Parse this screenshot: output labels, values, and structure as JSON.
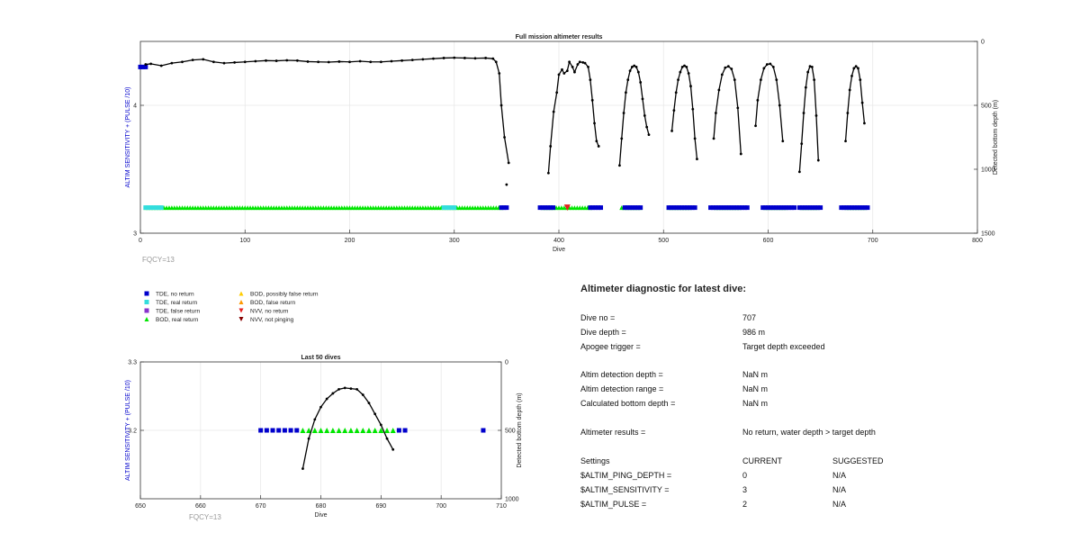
{
  "chart_data": [
    {
      "type": "scatter",
      "title": "Full mission altimeter results",
      "xlabel": "Dive",
      "ylabel_left": "ALTIM SENSITIVITY + (PULSE /10)",
      "ylabel_right": "Detected bottom depth (m)",
      "xlim": [
        0,
        800
      ],
      "ylim_left": [
        3,
        4.5
      ],
      "ylim_right": [
        0,
        1500
      ],
      "right_axis_reversed": true,
      "xticks": [
        0,
        100,
        200,
        300,
        400,
        500,
        600,
        700,
        800
      ],
      "yticks_left": [
        3,
        4
      ],
      "yticks_right": [
        0,
        500,
        1000,
        1500
      ],
      "grid": true,
      "annotation": "FQCY=13",
      "settings_series": [
        {
          "name": "TDE, no return",
          "x_segments": [
            [
              0,
              5
            ]
          ],
          "y": 4.3,
          "marker": "square",
          "color": "#0000cc"
        },
        {
          "name": "TDE, no return",
          "x_segments": [
            [
              345,
              352
            ],
            [
              382,
              395
            ],
            [
              430,
              440
            ],
            [
              463,
              480
            ],
            [
              505,
              530
            ],
            [
              545,
              580
            ],
            [
              595,
              625
            ],
            [
              630,
              650
            ],
            [
              670,
              695
            ]
          ],
          "y": 3.2,
          "marker": "square",
          "color": "#0000cc"
        },
        {
          "name": "BOD, real return",
          "x_segments": [
            [
              5,
              345
            ],
            [
              385,
              432
            ],
            [
              460,
              478
            ],
            [
              505,
              525
            ],
            [
              550,
              573
            ],
            [
              597,
              618
            ],
            [
              632,
              648
            ],
            [
              675,
              693
            ]
          ],
          "y": 3.2,
          "marker": "triangle",
          "color": "#00e600"
        },
        {
          "name": "TDE, real return",
          "x_segments": [
            [
              5,
              20
            ],
            [
              290,
              300
            ]
          ],
          "y": 3.2,
          "marker": "square",
          "color": "#33dddd"
        },
        {
          "name": "NVV, no return",
          "x": [
            408
          ],
          "y": 3.2,
          "marker": "triangle-down",
          "color": "#e62020"
        }
      ],
      "bottom_depth_profile": [
        {
          "x": [
            5,
            10,
            20,
            30,
            40,
            50,
            60,
            70,
            80,
            90,
            100,
            110,
            120,
            130,
            140,
            150,
            160,
            170,
            180,
            190,
            200,
            210,
            220,
            230,
            240,
            250,
            260,
            270,
            280,
            290,
            300,
            310,
            320,
            330,
            337,
            340,
            343,
            345,
            348,
            352
          ],
          "y": [
            180,
            175,
            190,
            170,
            160,
            145,
            140,
            160,
            170,
            165,
            160,
            155,
            150,
            152,
            148,
            150,
            158,
            160,
            162,
            158,
            160,
            155,
            160,
            160,
            155,
            150,
            145,
            140,
            135,
            130,
            128,
            130,
            132,
            130,
            135,
            160,
            250,
            500,
            750,
            950
          ]
        },
        {
          "x": [
            350
          ],
          "y": [
            1120
          ]
        },
        {
          "x": [
            390,
            392,
            395,
            398,
            400,
            403,
            405,
            408,
            410,
            413,
            415,
            418,
            420,
            423,
            425,
            428,
            430,
            432,
            434,
            436,
            438
          ],
          "y": [
            1030,
            820,
            550,
            400,
            260,
            220,
            250,
            230,
            160,
            200,
            240,
            180,
            160,
            165,
            170,
            200,
            300,
            460,
            640,
            780,
            820
          ]
        },
        {
          "x": [
            458,
            460,
            462,
            464,
            466,
            468,
            470,
            472,
            474,
            476,
            478,
            480,
            482,
            484,
            486
          ],
          "y": [
            970,
            760,
            560,
            400,
            300,
            230,
            200,
            190,
            200,
            240,
            320,
            450,
            580,
            670,
            730
          ]
        },
        {
          "x": [
            508,
            510,
            512,
            514,
            516,
            518,
            520,
            522,
            524,
            526,
            528,
            530,
            532
          ],
          "y": [
            700,
            540,
            400,
            300,
            240,
            200,
            190,
            200,
            250,
            350,
            530,
            760,
            920
          ]
        },
        {
          "x": [
            548,
            550,
            553,
            556,
            559,
            562,
            565,
            568,
            571,
            574
          ],
          "y": [
            760,
            560,
            380,
            260,
            205,
            195,
            215,
            300,
            520,
            880
          ]
        },
        {
          "x": [
            588,
            590,
            593,
            596,
            599,
            602,
            605,
            608,
            611,
            614
          ],
          "y": [
            660,
            460,
            300,
            210,
            180,
            175,
            200,
            300,
            500,
            780
          ]
        },
        {
          "x": [
            630,
            632,
            634,
            636,
            638,
            640,
            642,
            644,
            646,
            648
          ],
          "y": [
            1020,
            800,
            560,
            360,
            240,
            195,
            200,
            300,
            580,
            930
          ]
        },
        {
          "x": [
            674,
            676,
            678,
            680,
            682,
            684,
            686,
            688,
            690,
            692
          ],
          "y": [
            780,
            560,
            380,
            270,
            210,
            195,
            210,
            300,
            480,
            640
          ]
        }
      ]
    },
    {
      "type": "scatter",
      "title": "Last 50 dives",
      "xlabel": "Dive",
      "ylabel_left": "ALTIM SENSITIVITY + (PULSE /10)",
      "ylabel_right": "Detected bottom depth (m)",
      "xlim": [
        650,
        710
      ],
      "ylim_left": [
        3.1,
        3.3
      ],
      "ylim_right": [
        0,
        1000
      ],
      "right_axis_reversed": true,
      "xticks": [
        650,
        660,
        670,
        680,
        690,
        700,
        710
      ],
      "yticks_left": [
        3.2,
        3.3
      ],
      "yticks_right": [
        0,
        500,
        1000
      ],
      "grid": true,
      "annotation": "FQCY=13",
      "tde_no_return_x": [
        670,
        671,
        672,
        673,
        674,
        675,
        676,
        693,
        694,
        707
      ],
      "bod_real_return_x": [
        677,
        678,
        679,
        680,
        681,
        682,
        683,
        684,
        685,
        686,
        687,
        688,
        689,
        690,
        691,
        692
      ],
      "settings_y": 3.2,
      "bottom_depth_profile": {
        "x": [
          677,
          678,
          679,
          680,
          681,
          682,
          683,
          684,
          685,
          686,
          687,
          688,
          689,
          690,
          691,
          692
        ],
        "y": [
          780,
          560,
          420,
          330,
          270,
          230,
          200,
          190,
          195,
          200,
          240,
          300,
          380,
          460,
          560,
          640
        ]
      }
    }
  ],
  "legend": [
    {
      "label": "TDE, no return",
      "marker": "square",
      "color": "#0000cc"
    },
    {
      "label": "TDE, real return",
      "marker": "square",
      "color": "#33dddd"
    },
    {
      "label": "TDE, false return",
      "marker": "square",
      "color": "#8833cc"
    },
    {
      "label": "BOD, real return",
      "marker": "triangle",
      "color": "#00e600"
    },
    {
      "label": "BOD, possibly false return",
      "marker": "triangle",
      "color": "#ffcc00"
    },
    {
      "label": "BOD, false return",
      "marker": "triangle",
      "color": "#ff9900"
    },
    {
      "label": "NVV, no return",
      "marker": "triangle-down",
      "color": "#e62020"
    },
    {
      "label": "NVV, not pinging",
      "marker": "triangle-down",
      "color": "#880000"
    }
  ],
  "diagnostic": {
    "title": "Altimeter diagnostic for latest dive:",
    "dive_no_label": "Dive no =",
    "dive_no_value": "707",
    "dive_depth_label": "Dive depth =",
    "dive_depth_value": "986 m",
    "apogee_label": "Apogee trigger =",
    "apogee_value": "Target depth exceeded",
    "detect_depth_label": "Altim detection depth =",
    "detect_depth_value": "NaN m",
    "detect_range_label": "Altim detection range =",
    "detect_range_value": "NaN m",
    "calc_bottom_label": "Calculated bottom depth =",
    "calc_bottom_value": "NaN m",
    "results_label": "Altimeter results =",
    "results_value": "No return, water depth > target depth",
    "settings_label": "Settings",
    "current_label": "CURRENT",
    "suggested_label": "SUGGESTED",
    "rows": [
      {
        "name": "$ALTIM_PING_DEPTH =",
        "current": "0",
        "suggested": "N/A"
      },
      {
        "name": "$ALTIM_SENSITIVITY =",
        "current": "3",
        "suggested": "N/A"
      },
      {
        "name": "$ALTIM_PULSE =",
        "current": "2",
        "suggested": "N/A"
      }
    ]
  },
  "colors": {
    "axis": "#333333",
    "grid": "#e6e6e6",
    "ylabel": "#0000cc",
    "fqcy": "#999999",
    "profile": "#000000"
  }
}
